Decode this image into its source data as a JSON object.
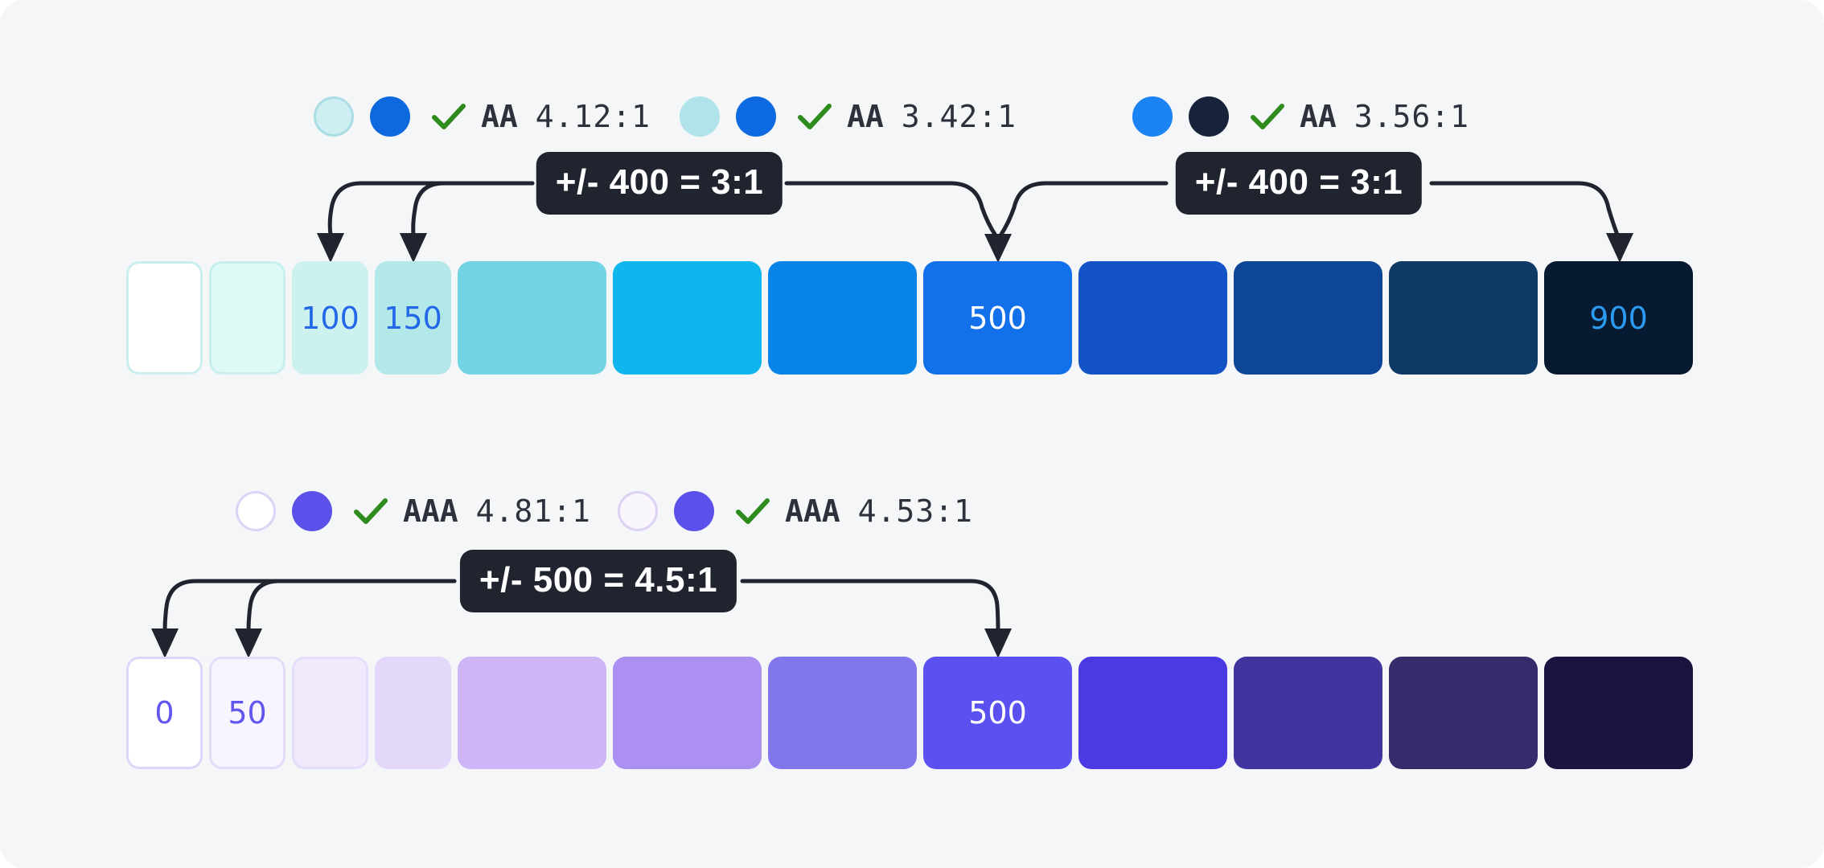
{
  "colors": {
    "page_bg": "#ffffff",
    "card_bg": "#f5f6f8",
    "connector": "#20242f",
    "pill_bg": "#20242f",
    "pill_text": "#ffffff",
    "check_green": "#2e8b1d",
    "badge_text": "#2c313c"
  },
  "blue_section": {
    "badges": [
      {
        "circle1_fill": "#cdeff2",
        "circle1_border": "#a9dde3",
        "circle2_fill": "#0d69dd",
        "level": "AA",
        "ratio": "4.12:1"
      },
      {
        "circle1_fill": "#b0e3ea",
        "circle1_border": "#b0e3ea",
        "circle2_fill": "#0d6ae0",
        "level": "AA",
        "ratio": "3.42:1"
      },
      {
        "circle1_fill": "#1c83f2",
        "circle1_border": "#1c83f2",
        "circle2_fill": "#16233b",
        "level": "AA",
        "ratio": "3.56:1"
      }
    ],
    "pill_left": "+/- 400 = 3:1",
    "pill_right": "+/- 400 = 3:1",
    "swatches": [
      {
        "fill": "#ffffff",
        "border": "#c9eef0",
        "size": "narrow"
      },
      {
        "fill": "#defaf7",
        "border": "#c6efee",
        "size": "narrow"
      },
      {
        "fill": "#cdf1ef",
        "size": "narrow",
        "label": "100",
        "label_color": "#2268e8"
      },
      {
        "fill": "#b2e8e8",
        "size": "narrow",
        "label": "150",
        "label_color": "#2268e8"
      },
      {
        "fill": "#72d3e2"
      },
      {
        "fill": "#0fb5ed"
      },
      {
        "fill": "#0884e9"
      },
      {
        "fill": "#1271ea",
        "label": "500",
        "label_color": "#ffffff"
      },
      {
        "fill": "#1353c6"
      },
      {
        "fill": "#0d4597"
      },
      {
        "fill": "#0e3a66"
      },
      {
        "fill": "#081a31",
        "label": "900",
        "label_color": "#2b9bf2"
      }
    ]
  },
  "purple_section": {
    "badges": [
      {
        "circle1_fill": "#ffffff",
        "circle1_border": "#dcd4f5",
        "circle2_fill": "#5b51ea",
        "level": "AAA",
        "ratio": "4.81:1"
      },
      {
        "circle1_fill": "#f9f6fe",
        "circle1_border": "#ded2f3",
        "circle2_fill": "#5b51ea",
        "level": "AAA",
        "ratio": "4.53:1"
      }
    ],
    "pill": "+/- 500 = 4.5:1",
    "swatches": [
      {
        "fill": "#ffffff",
        "border": "#ded6f7",
        "size": "narrow",
        "label": "0",
        "label_color": "#6156ee"
      },
      {
        "fill": "#f8f5fe",
        "border": "#e4dcf9",
        "size": "narrow",
        "label": "50",
        "label_color": "#6156ee"
      },
      {
        "fill": "#f1eafd",
        "border": "#e6dcfb",
        "size": "narrow"
      },
      {
        "fill": "#e3d7fa",
        "size": "narrow"
      },
      {
        "fill": "#cdb5f6"
      },
      {
        "fill": "#ab90f1"
      },
      {
        "fill": "#8276ed"
      },
      {
        "fill": "#5b51f0",
        "label": "500",
        "label_color": "#ffffff"
      },
      {
        "fill": "#4b3ae1"
      },
      {
        "fill": "#41349f"
      },
      {
        "fill": "#352c6c"
      },
      {
        "fill": "#191540"
      }
    ]
  }
}
